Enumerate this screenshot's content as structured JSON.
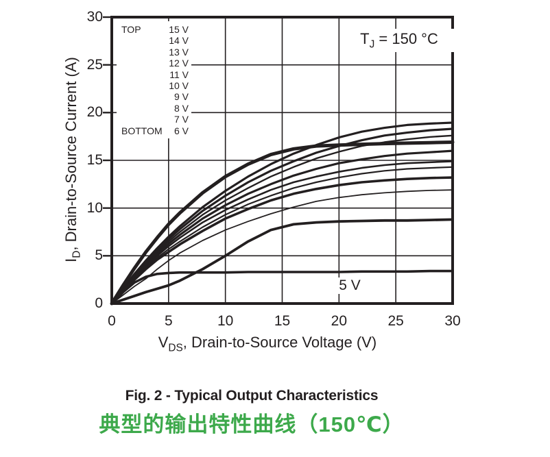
{
  "chart_data": {
    "type": "line",
    "annotation": {
      "prefix": "T",
      "sub": "J",
      "rest": " = 150 °C"
    },
    "xlabel": {
      "prefix": "V",
      "sub": "DS",
      "rest": ", Drain-to-Source Voltage (V)"
    },
    "ylabel": {
      "prefix": "I",
      "sub": "D",
      "rest": ", Drain-to-Source Current (A)"
    },
    "xlim": [
      0,
      30
    ],
    "ylim": [
      0,
      30
    ],
    "x_ticks": [
      0,
      5,
      10,
      15,
      20,
      25,
      30
    ],
    "y_ticks": [
      0,
      5,
      10,
      15,
      20,
      25,
      30
    ],
    "grid": true,
    "legend_position": "upper-left",
    "legend": {
      "top_label": "TOP",
      "bottom_label": "BOTTOM",
      "entries": [
        "15 V",
        "14 V",
        "13 V",
        "12 V",
        "11 V",
        "10 V",
        "9 V",
        "8 V",
        "7 V",
        "6 V"
      ]
    },
    "inline_label": "5 V",
    "x": [
      0,
      1,
      2,
      3,
      4,
      5,
      6,
      8,
      10,
      12,
      14,
      16,
      18,
      20,
      22,
      24,
      26,
      28,
      30
    ],
    "series": [
      {
        "name": "15 V",
        "width": 3.2,
        "y": [
          0,
          1.6,
          3.1,
          4.5,
          5.8,
          7.0,
          8.1,
          10.1,
          11.8,
          13.3,
          14.6,
          15.7,
          16.6,
          17.4,
          18.0,
          18.4,
          18.7,
          18.85,
          18.95
        ]
      },
      {
        "name": "14 V",
        "width": 3.2,
        "y": [
          0,
          1.55,
          3.0,
          4.35,
          5.6,
          6.75,
          7.8,
          9.7,
          11.3,
          12.7,
          13.9,
          14.9,
          15.8,
          16.5,
          17.1,
          17.6,
          17.9,
          18.15,
          18.3
        ]
      },
      {
        "name": "13 V",
        "width": 2.4,
        "y": [
          0,
          1.5,
          2.9,
          4.2,
          5.4,
          6.5,
          7.5,
          9.3,
          10.8,
          12.1,
          13.3,
          14.3,
          15.2,
          15.9,
          16.5,
          16.9,
          17.2,
          17.45,
          17.6
        ]
      },
      {
        "name": "12 V",
        "width": 5.0,
        "y": [
          0,
          1.9,
          3.7,
          5.4,
          6.9,
          8.3,
          9.5,
          11.6,
          13.3,
          14.6,
          15.6,
          16.2,
          16.5,
          16.6,
          16.68,
          16.75,
          16.8,
          16.85,
          16.9
        ]
      },
      {
        "name": "11 V",
        "width": 3.2,
        "y": [
          0,
          1.45,
          2.8,
          4.05,
          5.2,
          6.25,
          7.2,
          8.9,
          10.3,
          11.5,
          12.5,
          13.4,
          14.1,
          14.7,
          15.1,
          15.45,
          15.7,
          15.85,
          16.0
        ]
      },
      {
        "name": "10 V",
        "width": 2.6,
        "y": [
          0,
          1.4,
          2.7,
          3.9,
          5.0,
          6.0,
          6.9,
          8.5,
          9.8,
          10.9,
          11.9,
          12.7,
          13.3,
          13.8,
          14.2,
          14.5,
          14.7,
          14.8,
          14.9
        ]
      },
      {
        "name": "9 V",
        "width": 2.2,
        "y": [
          0,
          1.35,
          2.6,
          3.75,
          4.8,
          5.7,
          6.5,
          8.0,
          9.3,
          10.4,
          11.3,
          12.1,
          12.7,
          13.2,
          13.6,
          13.9,
          14.1,
          14.2,
          14.3
        ]
      },
      {
        "name": "8 V",
        "width": 3.6,
        "y": [
          0,
          1.3,
          2.5,
          3.6,
          4.6,
          5.4,
          6.2,
          7.6,
          8.9,
          9.9,
          10.8,
          11.5,
          12.0,
          12.4,
          12.7,
          12.9,
          13.05,
          13.15,
          13.2
        ]
      },
      {
        "name": "7 V",
        "width": 1.8,
        "y": [
          0,
          0.9,
          1.8,
          2.6,
          3.6,
          4.5,
          5.3,
          6.6,
          7.7,
          8.6,
          9.4,
          10.1,
          10.7,
          11.1,
          11.4,
          11.6,
          11.75,
          11.85,
          11.9
        ]
      },
      {
        "name": "6 V",
        "width": 3.8,
        "y": [
          0,
          0.4,
          0.8,
          1.2,
          1.55,
          1.9,
          2.4,
          3.6,
          5.0,
          6.5,
          7.7,
          8.3,
          8.5,
          8.6,
          8.65,
          8.7,
          8.7,
          8.75,
          8.8
        ]
      },
      {
        "name": "5 V",
        "width": 3.6,
        "y": [
          0,
          1.2,
          2.2,
          2.8,
          3.1,
          3.2,
          3.25,
          3.25,
          3.25,
          3.3,
          3.3,
          3.3,
          3.3,
          3.3,
          3.35,
          3.35,
          3.35,
          3.4,
          3.4
        ]
      }
    ]
  },
  "captions": {
    "figure": "Fig. 2 - Typical Output Characteristics",
    "chinese": "典型的输出特性曲线（150℃）"
  },
  "colors": {
    "ink": "#231f20",
    "accent_green": "#3DA94B"
  }
}
